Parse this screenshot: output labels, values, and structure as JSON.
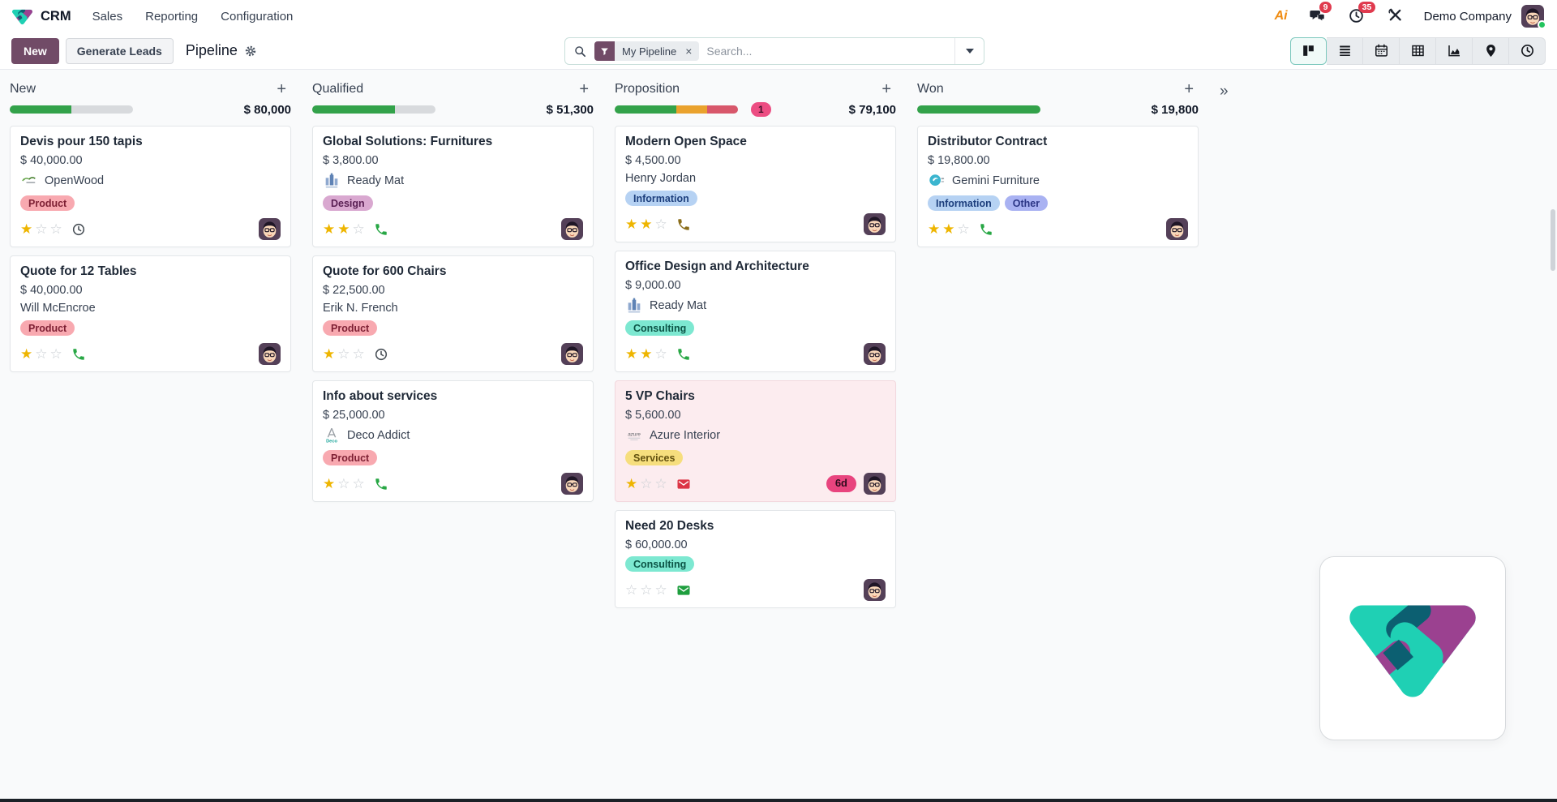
{
  "topbar": {
    "app_name": "CRM",
    "menus": [
      "Sales",
      "Reporting",
      "Configuration"
    ],
    "ai_label": "Ai",
    "messages_badge": "9",
    "activities_badge": "35",
    "company": "Demo Company"
  },
  "control_panel": {
    "new_button": "New",
    "generate_leads_button": "Generate Leads",
    "title": "Pipeline",
    "search": {
      "facet": "My Pipeline",
      "remove_label": "×",
      "placeholder": "Search..."
    }
  },
  "view_switcher": [
    {
      "name": "kanban",
      "active": true
    },
    {
      "name": "list",
      "active": false
    },
    {
      "name": "calendar",
      "active": false
    },
    {
      "name": "pivot",
      "active": false
    },
    {
      "name": "graph",
      "active": false
    },
    {
      "name": "map",
      "active": false
    },
    {
      "name": "activity",
      "active": false
    }
  ],
  "colors": {
    "accent": "#714B67",
    "progress_green": "#33a24a",
    "progress_orange": "#eaa22d",
    "progress_red": "#d8576b"
  },
  "board": {
    "add_label": "+",
    "fold_label": "»",
    "star_on": "★",
    "star_off": "☆",
    "columns": [
      {
        "name": "New",
        "amount": "$ 80,000",
        "counter": null,
        "progress": [
          {
            "name": "success",
            "color": "#33a24a",
            "pct": 50
          }
        ],
        "cards": [
          {
            "title": "Devis pour 150 tapis",
            "amount": "$ 40,000.00",
            "partner": {
              "name": "OpenWood",
              "logo": "openwood"
            },
            "tags": [
              {
                "label": "Product",
                "bg": "#f8a9b0",
                "fg": "#7d1f33"
              }
            ],
            "stars": 1,
            "activity": {
              "icon": "clock",
              "color": "#495057"
            }
          },
          {
            "title": "Quote for 12 Tables",
            "amount": "$ 40,000.00",
            "contact": "Will McEncroe",
            "tags": [
              {
                "label": "Product",
                "bg": "#f8a9b0",
                "fg": "#7d1f33"
              }
            ],
            "stars": 1,
            "activity": {
              "icon": "phone",
              "color": "#28a745"
            }
          }
        ]
      },
      {
        "name": "Qualified",
        "amount": "$ 51,300",
        "counter": null,
        "progress": [
          {
            "name": "success",
            "color": "#33a24a",
            "pct": 67
          }
        ],
        "cards": [
          {
            "title": "Global Solutions: Furnitures",
            "amount": "$ 3,800.00",
            "partner": {
              "name": "Ready Mat",
              "logo": "readymat"
            },
            "tags": [
              {
                "label": "Design",
                "bg": "#d9a8d0",
                "fg": "#581e52"
              }
            ],
            "stars": 2,
            "activity": {
              "icon": "phone",
              "color": "#28a745"
            }
          },
          {
            "title": "Quote for 600 Chairs",
            "amount": "$ 22,500.00",
            "contact": "Erik N. French",
            "tags": [
              {
                "label": "Product",
                "bg": "#f8a9b0",
                "fg": "#7d1f33"
              }
            ],
            "stars": 1,
            "activity": {
              "icon": "clock",
              "color": "#495057"
            }
          },
          {
            "title": "Info about services",
            "amount": "$ 25,000.00",
            "partner": {
              "name": "Deco Addict",
              "logo": "deco"
            },
            "tags": [
              {
                "label": "Product",
                "bg": "#f8a9b0",
                "fg": "#7d1f33"
              }
            ],
            "stars": 1,
            "activity": {
              "icon": "phone",
              "color": "#28a745"
            }
          }
        ]
      },
      {
        "name": "Proposition",
        "amount": "$ 79,100",
        "counter": "1",
        "progress": [
          {
            "name": "success",
            "color": "#33a24a",
            "pct": 50
          },
          {
            "name": "warning",
            "color": "#eaa22d",
            "pct": 25
          },
          {
            "name": "danger",
            "color": "#d8576b",
            "pct": 25
          }
        ],
        "cards": [
          {
            "title": "Modern Open Space",
            "amount": "$ 4,500.00",
            "contact": "Henry Jordan",
            "tags": [
              {
                "label": "Information",
                "bg": "#b6d2f3",
                "fg": "#1d3f7d"
              }
            ],
            "stars": 2,
            "activity": {
              "icon": "phone",
              "color": "#8a6d1a"
            }
          },
          {
            "title": "Office Design and Architecture",
            "amount": "$ 9,000.00",
            "partner": {
              "name": "Ready Mat",
              "logo": "readymat"
            },
            "tags": [
              {
                "label": "Consulting",
                "bg": "#7de8d1",
                "fg": "#0b5345"
              }
            ],
            "stars": 2,
            "activity": {
              "icon": "phone",
              "color": "#28a745"
            }
          },
          {
            "title": "5 VP Chairs",
            "amount": "$ 5,600.00",
            "partner": {
              "name": "Azure Interior",
              "logo": "azure"
            },
            "tags": [
              {
                "label": "Services",
                "bg": "#f6de7d",
                "fg": "#63510f"
              }
            ],
            "stars": 1,
            "activity": {
              "icon": "envelope",
              "color": "#dc3545"
            },
            "badge": "6d",
            "highlight": true
          },
          {
            "title": "Need 20 Desks",
            "amount": "$ 60,000.00",
            "tags": [
              {
                "label": "Consulting",
                "bg": "#7de8d1",
                "fg": "#0b5345"
              }
            ],
            "stars": 0,
            "activity": {
              "icon": "envelope",
              "color": "#1e9e3e"
            }
          }
        ]
      },
      {
        "name": "Won",
        "amount": "$ 19,800",
        "counter": null,
        "progress": [
          {
            "name": "success",
            "color": "#33a24a",
            "pct": 100
          }
        ],
        "cards": [
          {
            "title": "Distributor Contract",
            "amount": "$ 19,800.00",
            "partner": {
              "name": "Gemini Furniture",
              "logo": "gemini"
            },
            "tags": [
              {
                "label": "Information",
                "bg": "#b6d2f3",
                "fg": "#1d3f7d"
              },
              {
                "label": "Other",
                "bg": "#a9b2f2",
                "fg": "#2b3585"
              }
            ],
            "stars": 2,
            "activity": {
              "icon": "phone",
              "color": "#28a745"
            }
          }
        ]
      }
    ]
  }
}
